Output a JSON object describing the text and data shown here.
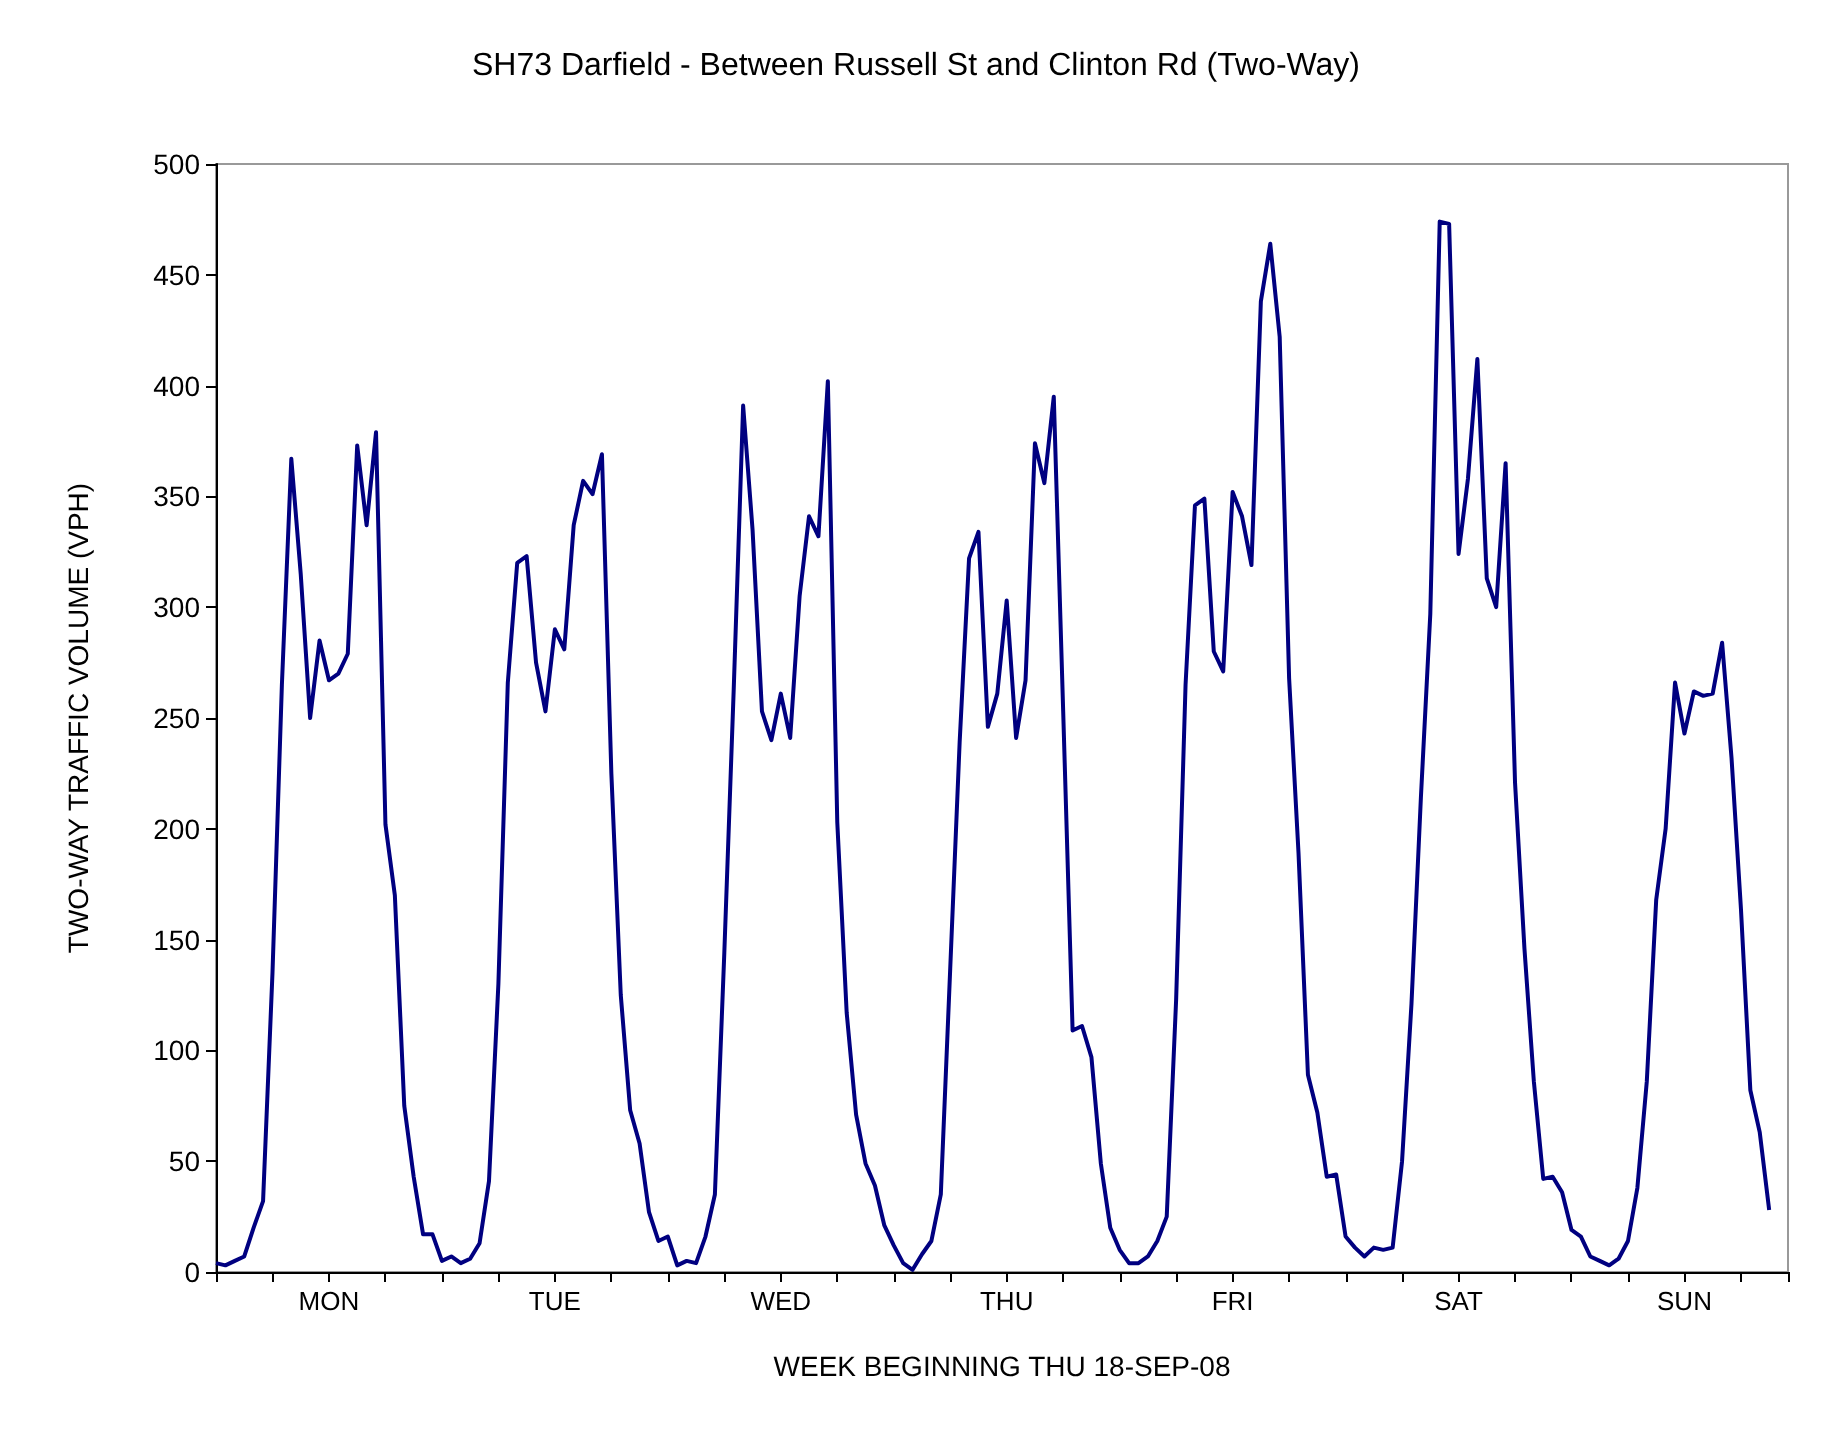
{
  "chart_data": {
    "type": "line",
    "title": "SH73 Darfield - Between Russell St and Clinton Rd (Two-Way)",
    "xlabel": "WEEK BEGINNING THU 18-SEP-08",
    "ylabel": "TWO-WAY TRAFFIC VOLUME (VPH)",
    "categories": [
      null,
      null,
      null,
      null,
      null,
      null,
      null,
      null,
      null,
      null,
      null,
      null,
      "MON",
      null,
      null,
      null,
      null,
      null,
      null,
      null,
      null,
      null,
      null,
      null,
      null,
      null,
      null,
      null,
      null,
      null,
      null,
      null,
      null,
      null,
      null,
      null,
      "TUE",
      null,
      null,
      null,
      null,
      null,
      null,
      null,
      null,
      null,
      null,
      null,
      null,
      null,
      null,
      null,
      null,
      null,
      null,
      null,
      null,
      null,
      null,
      null,
      "WED",
      null,
      null,
      null,
      null,
      null,
      null,
      null,
      null,
      null,
      null,
      null,
      null,
      null,
      null,
      null,
      null,
      null,
      null,
      null,
      null,
      null,
      null,
      null,
      "THU",
      null,
      null,
      null,
      null,
      null,
      null,
      null,
      null,
      null,
      null,
      null,
      null,
      null,
      null,
      null,
      null,
      null,
      null,
      null,
      null,
      null,
      null,
      null,
      "FRI",
      null,
      null,
      null,
      null,
      null,
      null,
      null,
      null,
      null,
      null,
      null,
      null,
      null,
      null,
      null,
      null,
      null,
      null,
      null,
      null,
      null,
      null,
      null,
      "SAT",
      null,
      null,
      null,
      null,
      null,
      null,
      null,
      null,
      null,
      null,
      null,
      null,
      null,
      null,
      null,
      null,
      null,
      null,
      null,
      null,
      null,
      null,
      null,
      "SUN",
      null,
      null,
      null,
      null,
      null,
      null,
      null,
      null,
      null,
      null,
      null
    ],
    "series": [
      {
        "color": "#000080",
        "values": [
          4,
          3,
          5,
          7,
          20,
          32,
          135,
          265,
          367,
          315,
          250,
          285,
          267,
          270,
          279,
          373,
          337,
          379,
          202,
          170,
          75,
          43,
          17,
          17,
          5,
          7,
          4,
          6,
          13,
          41,
          130,
          266,
          320,
          323,
          275,
          253,
          290,
          281,
          337,
          357,
          351,
          369,
          225,
          125,
          73,
          58,
          27,
          14,
          16,
          3,
          5,
          4,
          16,
          35,
          144,
          263,
          391,
          335,
          253,
          240,
          261,
          241,
          305,
          341,
          332,
          402,
          203,
          117,
          71,
          49,
          39,
          21,
          12,
          4,
          1,
          8,
          14,
          35,
          137,
          239,
          322,
          334,
          246,
          261,
          303,
          241,
          267,
          374,
          356,
          395,
          253,
          109,
          111,
          97,
          49,
          20,
          10,
          4,
          4,
          7,
          14,
          25,
          123,
          265,
          346,
          349,
          280,
          271,
          352,
          341,
          319,
          438,
          464,
          422,
          268,
          189,
          89,
          72,
          43,
          44,
          16,
          11,
          7,
          11,
          10,
          11,
          50,
          121,
          214,
          297,
          474,
          473,
          324,
          358,
          412,
          313,
          300,
          365,
          221,
          146,
          86,
          42,
          43,
          36,
          19,
          16,
          7,
          5,
          3,
          6,
          14,
          38,
          86,
          168,
          200,
          266,
          243,
          262,
          260,
          261,
          284,
          232,
          164,
          82,
          63,
          28,
          null,
          null
        ]
      }
    ],
    "ylim": [
      0,
      500
    ],
    "yticks": [
      0,
      50,
      100,
      150,
      200,
      250,
      300,
      350,
      400,
      450,
      500
    ],
    "grid": false,
    "marker": "none",
    "line_style": "solid"
  }
}
